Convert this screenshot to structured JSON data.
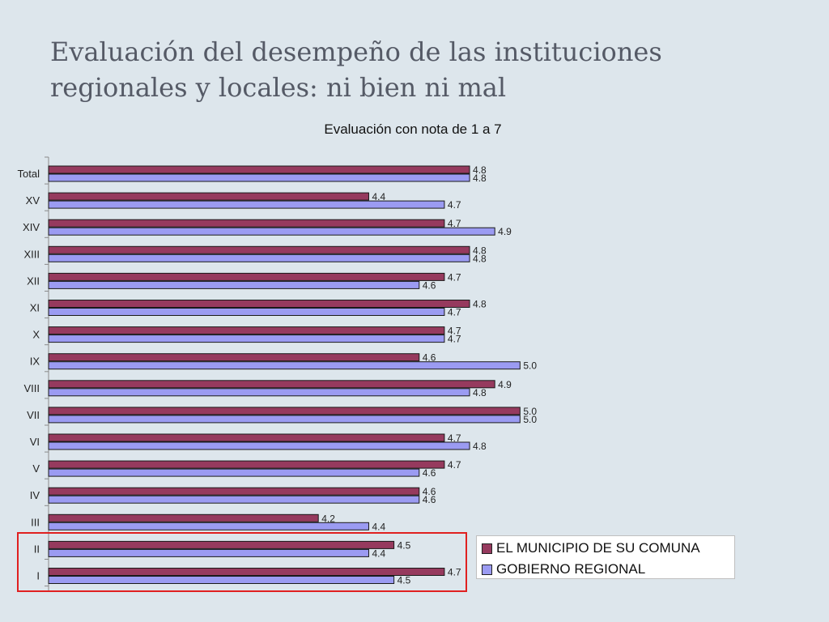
{
  "slide": {
    "title": "Evaluación del desempeño de las instituciones regionales y locales: ni bien ni mal"
  },
  "chart_data": {
    "type": "bar",
    "orientation": "horizontal",
    "title": "Evaluación con nota de 1 a 7",
    "categories": [
      "Total",
      "XV",
      "XIV",
      "XIII",
      "XII",
      "XI",
      "X",
      "IX",
      "VIII",
      "VII",
      "VI",
      "V",
      "IV",
      "III",
      "II",
      "I"
    ],
    "series": [
      {
        "name": "EL MUNICIPIO DE SU COMUNA",
        "color": "#963a5e",
        "values": [
          4.8,
          4.4,
          4.7,
          4.8,
          4.7,
          4.8,
          4.7,
          4.6,
          4.9,
          5.0,
          4.7,
          4.7,
          4.6,
          4.2,
          4.5,
          4.7
        ],
        "labels": [
          "4.8",
          "4.4",
          "4.7",
          "4.8",
          "4.7",
          "4.8",
          "4.7",
          "4.6",
          "4.9",
          "5.0",
          "4.7",
          "4.7",
          "4.6",
          "4.2",
          "4.5",
          "4.7"
        ]
      },
      {
        "name": "GOBIERNO REGIONAL",
        "color": "#9b9bf2",
        "values": [
          4.8,
          4.7,
          4.9,
          4.8,
          4.6,
          4.7,
          4.7,
          5.0,
          4.8,
          5.0,
          4.8,
          4.6,
          4.6,
          4.4,
          4.4,
          4.5
        ],
        "labels": [
          "4.8",
          "4.7",
          "4.9",
          "4.8",
          "4.6",
          "4.7",
          "4.7",
          "5.0",
          "4.8",
          "5.0",
          "4.8",
          "4.6",
          "4.6",
          "4.4",
          "4.4",
          "4.5"
        ]
      }
    ],
    "legend_position": "bottom-right",
    "grid": false
  }
}
